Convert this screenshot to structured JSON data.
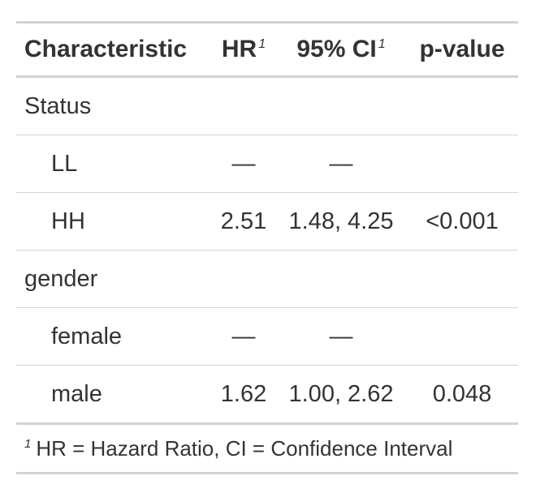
{
  "table": {
    "headers": {
      "characteristic": "Characteristic",
      "hr": "HR",
      "hr_sup": "1",
      "ci": "95% CI",
      "ci_sup": "1",
      "pvalue": "p-value"
    },
    "rows": [
      {
        "label": "Status",
        "hr": "",
        "ci": "",
        "p": ""
      },
      {
        "label": "LL",
        "hr": "—",
        "ci": "—",
        "p": ""
      },
      {
        "label": "HH",
        "hr": "2.51",
        "ci": "1.48, 4.25",
        "p": "<0.001"
      },
      {
        "label": "gender",
        "hr": "",
        "ci": "",
        "p": ""
      },
      {
        "label": "female",
        "hr": "—",
        "ci": "—",
        "p": ""
      },
      {
        "label": "male",
        "hr": "1.62",
        "ci": "1.00, 2.62",
        "p": "0.048"
      }
    ],
    "footnote": {
      "mark": "1",
      "text": "HR = Hazard Ratio, CI = Confidence Interval"
    }
  }
}
